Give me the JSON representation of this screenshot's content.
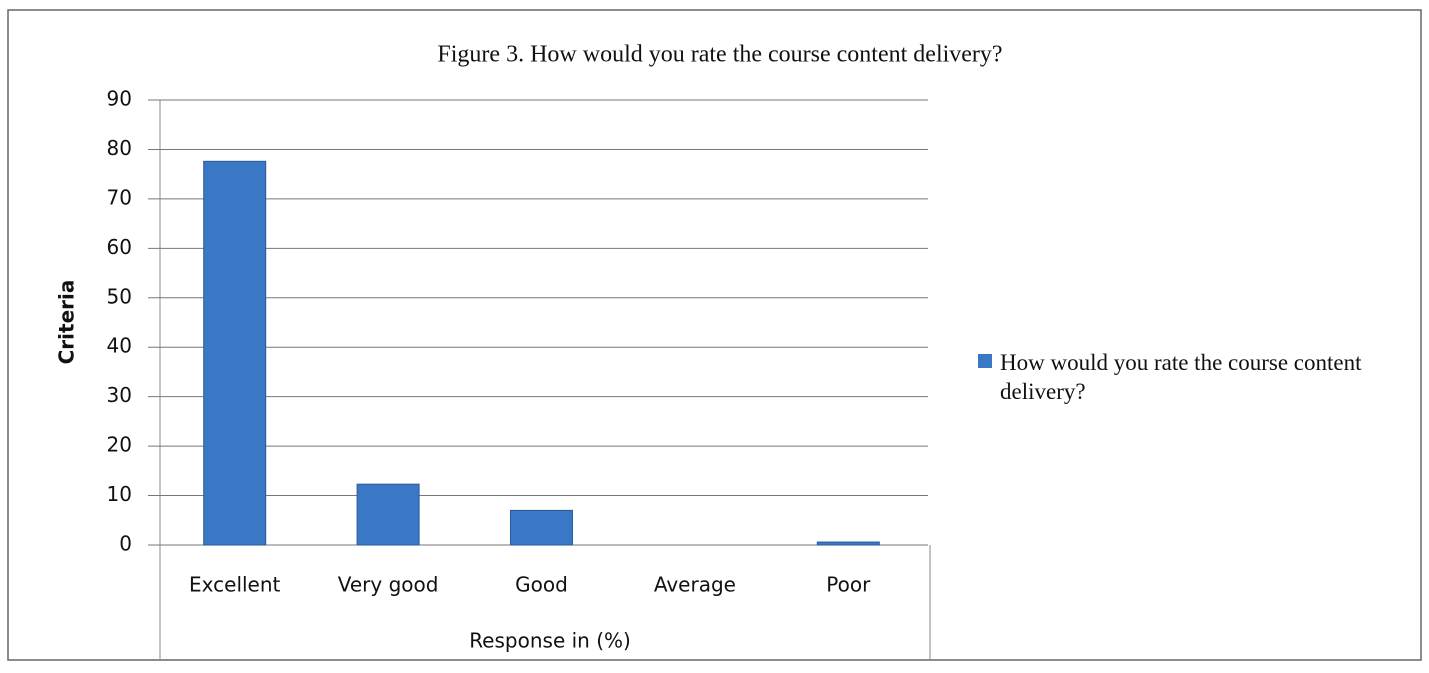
{
  "chart_data": {
    "type": "bar",
    "title": "Figure 3. How would you rate the course content delivery?",
    "x_label": "Response in (%)",
    "y_label": "Criteria",
    "categories": [
      "Excellent",
      "Very good",
      "Good",
      "Average",
      "Poor"
    ],
    "series": [
      {
        "name": "How would you rate the course content delivery?",
        "color": "#3a78c6",
        "values": [
          77.6,
          12.3,
          7,
          0,
          0.6
        ]
      }
    ],
    "ylim": [
      0,
      90
    ],
    "yticks": [
      0,
      10,
      20,
      30,
      40,
      50,
      60,
      70,
      80,
      90
    ],
    "grid": true,
    "legend": "right"
  }
}
